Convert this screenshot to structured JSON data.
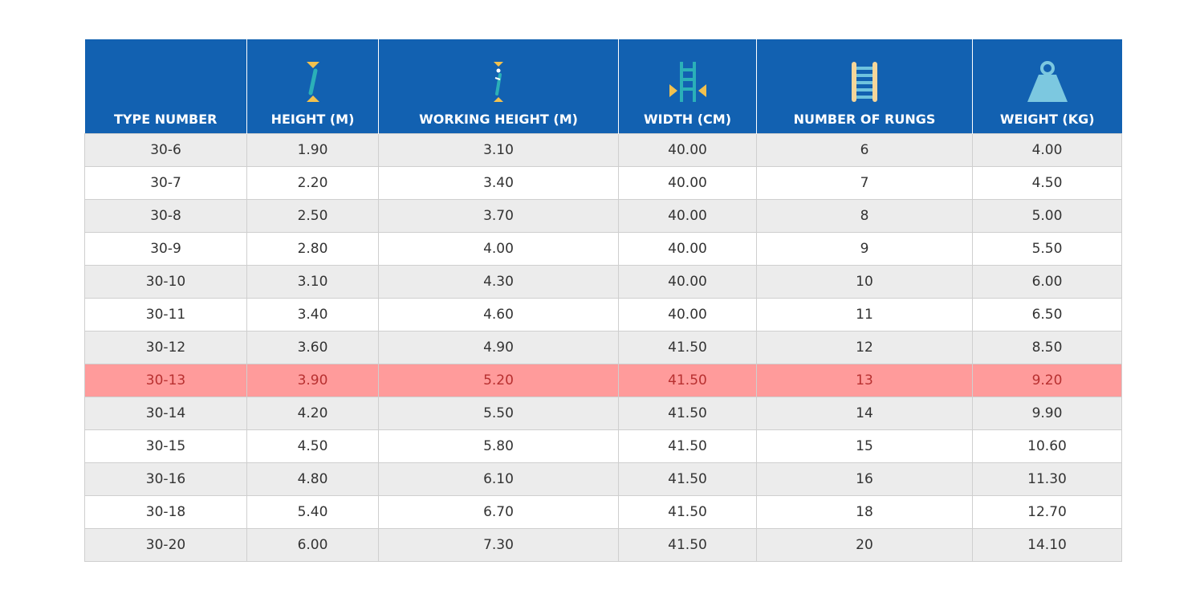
{
  "table": {
    "columns": [
      "TYPE NUMBER",
      "HEIGHT (M)",
      "WORKING HEIGHT (M)",
      "WIDTH (CM)",
      "NUMBER OF RUNGS",
      "WEIGHT (KG)"
    ],
    "rows": [
      [
        "30-6",
        "1.90",
        "3.10",
        "40.00",
        "6",
        "4.00"
      ],
      [
        "30-7",
        "2.20",
        "3.40",
        "40.00",
        "7",
        "4.50"
      ],
      [
        "30-8",
        "2.50",
        "3.70",
        "40.00",
        "8",
        "5.00"
      ],
      [
        "30-9",
        "2.80",
        "4.00",
        "40.00",
        "9",
        "5.50"
      ],
      [
        "30-10",
        "3.10",
        "4.30",
        "40.00",
        "10",
        "6.00"
      ],
      [
        "30-11",
        "3.40",
        "4.60",
        "40.00",
        "11",
        "6.50"
      ],
      [
        "30-12",
        "3.60",
        "4.90",
        "41.50",
        "12",
        "8.50"
      ],
      [
        "30-13",
        "3.90",
        "5.20",
        "41.50",
        "13",
        "9.20"
      ],
      [
        "30-14",
        "4.20",
        "5.50",
        "41.50",
        "14",
        "9.90"
      ],
      [
        "30-15",
        "4.50",
        "5.80",
        "41.50",
        "15",
        "10.60"
      ],
      [
        "30-16",
        "4.80",
        "6.10",
        "41.50",
        "16",
        "11.30"
      ],
      [
        "30-18",
        "5.40",
        "6.70",
        "41.50",
        "18",
        "12.70"
      ],
      [
        "30-20",
        "6.00",
        "7.30",
        "41.50",
        "20",
        "14.10"
      ]
    ]
  }
}
